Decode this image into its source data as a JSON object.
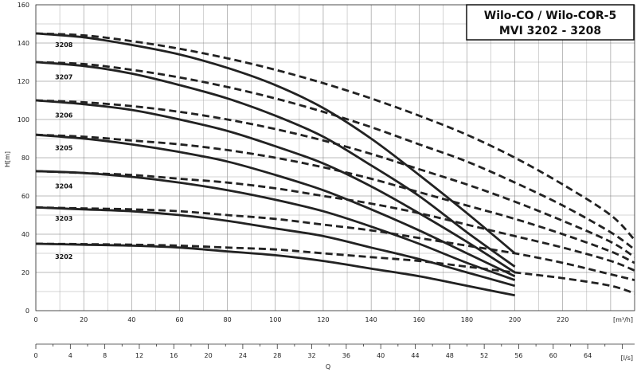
{
  "chart_data": {
    "type": "line",
    "title_lines": [
      "Wilo-CO / Wilo-COR-5",
      "MVI 3202 - 3208"
    ],
    "ylabel": "H[m]",
    "xlabel": "Q",
    "x_unit_primary": "[m³/h]",
    "x_unit_secondary": "[l/s]",
    "xlim": [
      0,
      250
    ],
    "ylim": [
      0,
      160
    ],
    "secondary_xlim": [
      0,
      69.44
    ],
    "x_ticks": [
      0,
      20,
      40,
      60,
      80,
      100,
      120,
      140,
      160,
      180,
      200,
      220
    ],
    "x_tick_labels": [
      "0",
      "20",
      "40",
      "60",
      "80",
      "100",
      "120",
      "140",
      "160",
      "180",
      "200",
      "220"
    ],
    "y_ticks": [
      0,
      20,
      40,
      60,
      80,
      100,
      120,
      140,
      160
    ],
    "y_tick_labels": [
      "0",
      "20",
      "40",
      "60",
      "80",
      "100",
      "120",
      "140",
      "160"
    ],
    "secondary_ticks": [
      0,
      4,
      8,
      12,
      16,
      20,
      24,
      28,
      32,
      36,
      40,
      44,
      48,
      52,
      56,
      60,
      64
    ],
    "secondary_tick_labels": [
      "0",
      "4",
      "8",
      "12",
      "16",
      "20",
      "24",
      "28",
      "32",
      "36",
      "40",
      "44",
      "48",
      "52",
      "56",
      "60",
      "64"
    ],
    "grid": true,
    "series": [
      {
        "name": "3208",
        "label_pos": [
          8,
          138
        ],
        "solid": {
          "x": [
            0,
            20,
            40,
            60,
            80,
            100,
            120,
            140,
            160,
            180,
            200
          ],
          "y": [
            145,
            143,
            139,
            134,
            127,
            118,
            106,
            90,
            71,
            51,
            30
          ]
        },
        "dashed": {
          "x": [
            0,
            20,
            40,
            60,
            80,
            100,
            120,
            140,
            160,
            180,
            200,
            220,
            240,
            250
          ],
          "y": [
            145,
            144,
            141,
            137,
            132,
            126,
            119,
            111,
            102,
            92,
            80,
            66,
            50,
            37
          ]
        }
      },
      {
        "name": "3207",
        "label_pos": [
          8,
          121
        ],
        "solid": {
          "x": [
            0,
            20,
            40,
            60,
            80,
            100,
            120,
            140,
            160,
            180,
            200
          ],
          "y": [
            130,
            128,
            124,
            118,
            111,
            102,
            91,
            76,
            60,
            41,
            23
          ]
        },
        "dashed": {
          "x": [
            0,
            20,
            40,
            60,
            80,
            100,
            120,
            140,
            160,
            180,
            200,
            220,
            240,
            250
          ],
          "y": [
            130,
            129,
            126,
            122,
            117,
            111,
            104,
            96,
            87,
            78,
            67,
            55,
            41,
            32
          ]
        }
      },
      {
        "name": "3206",
        "label_pos": [
          8,
          101
        ],
        "solid": {
          "x": [
            0,
            20,
            40,
            60,
            80,
            100,
            120,
            140,
            160,
            180,
            200
          ],
          "y": [
            110,
            108,
            105,
            100,
            94,
            86,
            77,
            65,
            51,
            36,
            20
          ]
        },
        "dashed": {
          "x": [
            0,
            20,
            40,
            60,
            80,
            100,
            120,
            140,
            160,
            180,
            200,
            220,
            240,
            250
          ],
          "y": [
            110,
            109,
            107,
            104,
            100,
            95,
            89,
            82,
            74,
            66,
            57,
            47,
            36,
            28
          ]
        }
      },
      {
        "name": "3205",
        "label_pos": [
          8,
          84
        ],
        "solid": {
          "x": [
            0,
            20,
            40,
            60,
            80,
            100,
            120,
            140,
            160,
            180,
            200
          ],
          "y": [
            92,
            90,
            87,
            83,
            78,
            71,
            63,
            53,
            42,
            30,
            18
          ]
        },
        "dashed": {
          "x": [
            0,
            20,
            40,
            60,
            80,
            100,
            120,
            140,
            160,
            180,
            200,
            220,
            240,
            250
          ],
          "y": [
            92,
            91,
            89,
            87,
            84,
            80,
            75,
            69,
            62,
            55,
            48,
            40,
            31,
            25
          ]
        }
      },
      {
        "name": "3204",
        "label_pos": [
          8,
          64
        ],
        "solid": {
          "x": [
            0,
            20,
            40,
            60,
            80,
            100,
            120,
            140,
            160,
            180,
            200
          ],
          "y": [
            73,
            72,
            70,
            67,
            63,
            58,
            52,
            44,
            35,
            25,
            16
          ]
        },
        "dashed": {
          "x": [
            0,
            20,
            40,
            60,
            80,
            100,
            120,
            140,
            160,
            180,
            200,
            220,
            240,
            250
          ],
          "y": [
            73,
            72,
            71,
            69,
            67,
            64,
            60,
            56,
            51,
            45,
            39,
            33,
            26,
            21
          ]
        }
      },
      {
        "name": "3203",
        "label_pos": [
          8,
          47
        ],
        "solid": {
          "x": [
            0,
            20,
            40,
            60,
            80,
            100,
            120,
            140,
            160,
            180,
            200
          ],
          "y": [
            54,
            53,
            52,
            50,
            47,
            43,
            39,
            33,
            27,
            20,
            13
          ]
        },
        "dashed": {
          "x": [
            0,
            20,
            40,
            60,
            80,
            100,
            120,
            140,
            160,
            180,
            200,
            220,
            240,
            250
          ],
          "y": [
            54,
            53.5,
            53,
            52,
            50,
            48,
            45,
            42,
            38,
            34,
            30,
            25,
            19,
            16
          ]
        }
      },
      {
        "name": "3202",
        "label_pos": [
          8,
          27
        ],
        "solid": {
          "x": [
            0,
            20,
            40,
            60,
            80,
            100,
            120,
            140,
            160,
            180,
            200
          ],
          "y": [
            35,
            34.5,
            34,
            33,
            31,
            29,
            26,
            22,
            18,
            13,
            8
          ]
        },
        "dashed": {
          "x": [
            0,
            20,
            40,
            60,
            80,
            100,
            120,
            140,
            160,
            180,
            200,
            220,
            240,
            250
          ],
          "y": [
            35,
            34.8,
            34.5,
            34,
            33,
            32,
            30,
            28,
            26,
            23,
            20,
            17,
            13,
            9
          ]
        }
      }
    ]
  }
}
